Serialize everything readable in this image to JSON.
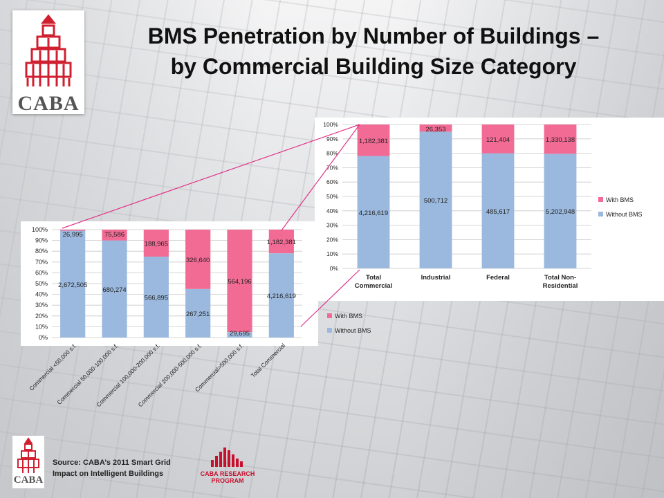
{
  "slide": {
    "title": "BMS Penetration by Number of Buildings – by Commercial Building Size Category",
    "logo_text": "CABA",
    "source_line1": "Source: CABA’s 2011 Smart Grid",
    "source_line2": "Impact on Intelligent Buildings",
    "program_line1": "CABA RESEARCH",
    "program_line2": "PROGRAM"
  },
  "colors": {
    "with_bms": "#f26b94",
    "without_bms": "#9bb9de",
    "brand_red": "#c8102e"
  },
  "chart_data": [
    {
      "type": "bar",
      "stacked": "percent",
      "categories": [
        "Commercial <50,000 s.f.",
        "Commercial 50,000-100,000 s.f.",
        "Commercial 100,000-200,000 s.f.",
        "Commercial 200,000-500,000 s.f.",
        "Commercial>500,000 s.f.",
        "Total Commercial"
      ],
      "series": [
        {
          "name": "Without BMS",
          "values": [
            2672505,
            680274,
            566895,
            267251,
            29695,
            4216619
          ],
          "labels": [
            "2,672,505",
            "680,274",
            "566,895",
            "267,251",
            "29,695",
            "4,216,619"
          ]
        },
        {
          "name": "With BMS",
          "values": [
            26995,
            75586,
            188965,
            326640,
            564196,
            1182381
          ],
          "labels": [
            "26,995",
            "75,586",
            "188,965",
            "326,640",
            "564,196",
            "1,182,381"
          ]
        }
      ],
      "y_ticks": [
        "0%",
        "10%",
        "20%",
        "30%",
        "40%",
        "50%",
        "60%",
        "70%",
        "80%",
        "90%",
        "100%"
      ],
      "ylim": [
        0,
        100
      ],
      "grid": true,
      "legend": "right"
    },
    {
      "type": "bar",
      "stacked": "percent",
      "categories": [
        "Total Commercial",
        "Industrial",
        "Federal",
        "Total Non-Residential"
      ],
      "series": [
        {
          "name": "Without BMS",
          "values": [
            4216619,
            500712,
            485617,
            5202948
          ],
          "labels": [
            "4,216,619",
            "500,712",
            "485,617",
            "5,202,948"
          ]
        },
        {
          "name": "With BMS",
          "values": [
            1182381,
            26353,
            121404,
            1330138
          ],
          "labels": [
            "1,182,381",
            "26,353",
            "121,404",
            "1,330,138"
          ]
        }
      ],
      "y_ticks": [
        "0%",
        "10%",
        "20%",
        "30%",
        "40%",
        "50%",
        "60%",
        "70%",
        "80%",
        "90%",
        "100%"
      ],
      "ylim": [
        0,
        100
      ],
      "grid": true,
      "legend": "right"
    }
  ]
}
